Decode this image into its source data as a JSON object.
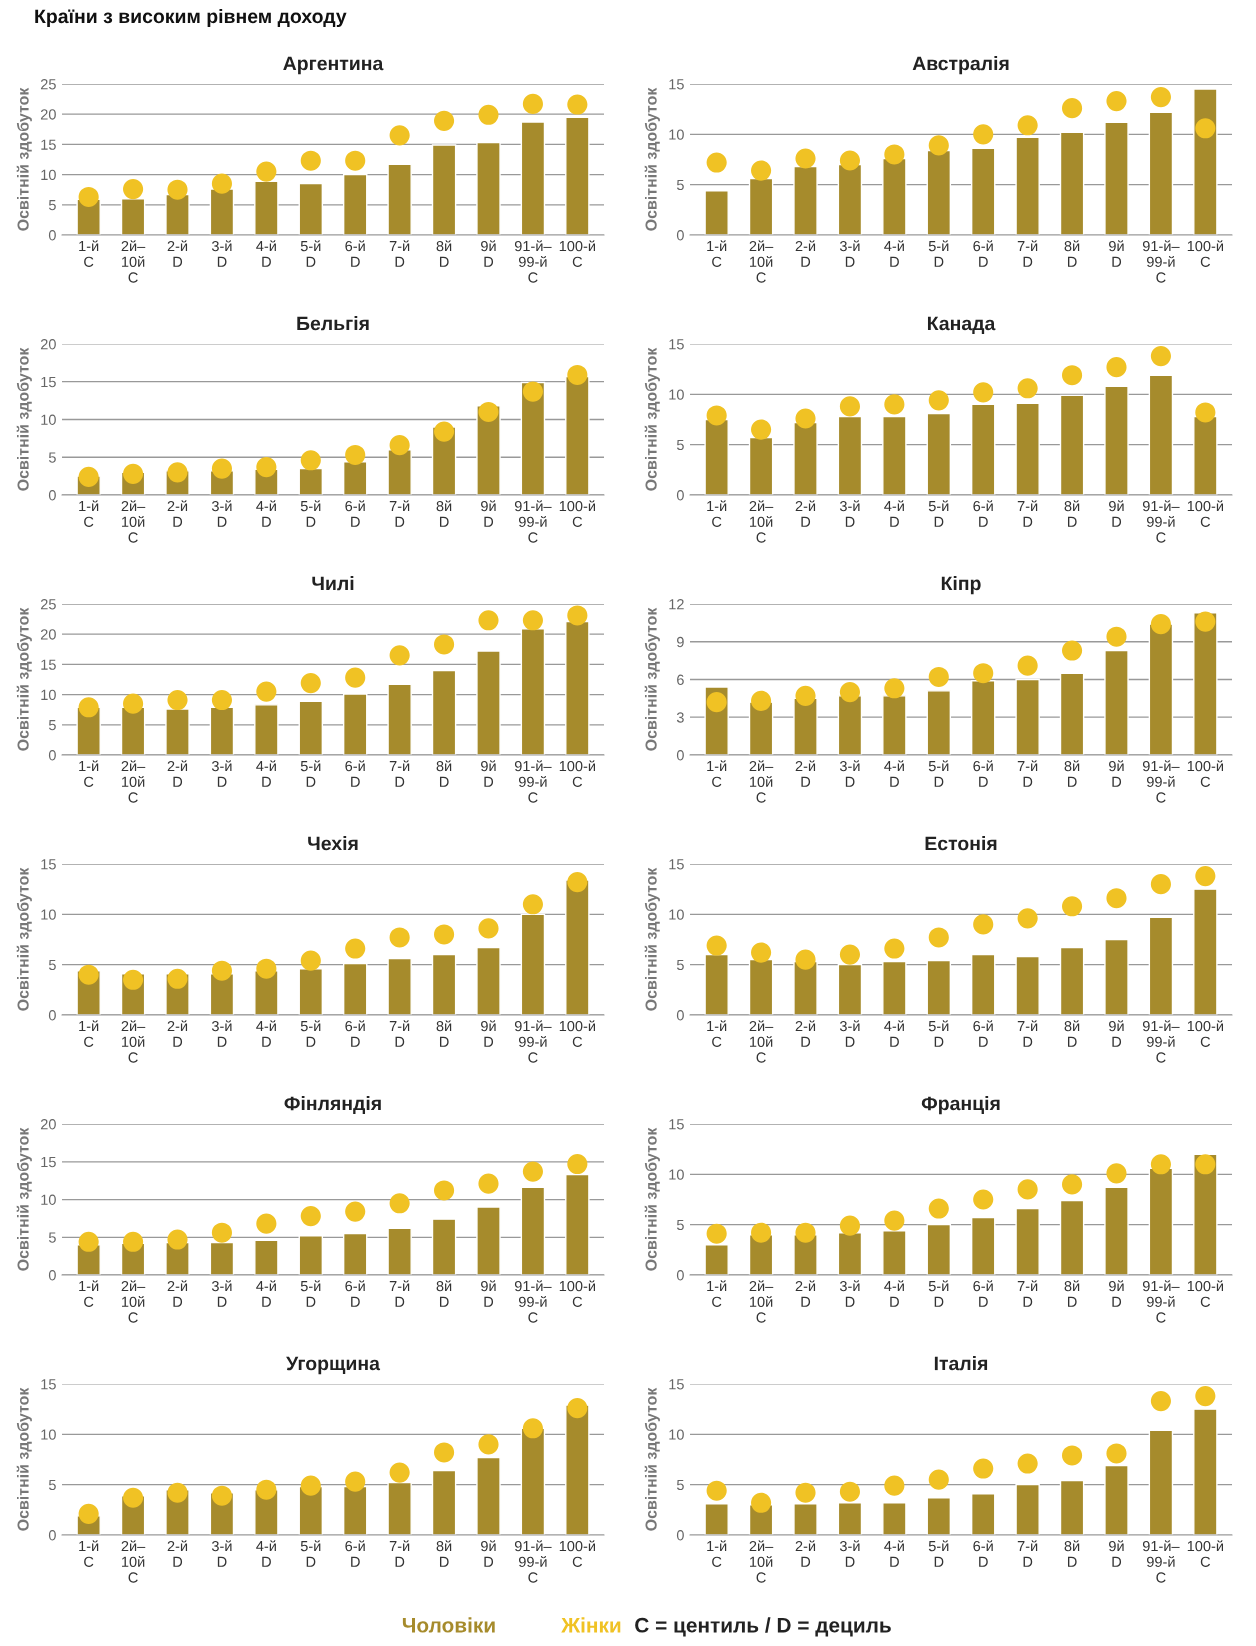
{
  "chart_data": [
    {
      "type": "bar",
      "title": "Аргентина",
      "ylabel": "Освітній здобуток",
      "annotations": [
        "Країни з високим рівнем доходу"
      ],
      "categories": [
        "1-й\nC",
        "2й–\n10й\nC",
        "2-й\nD",
        "3-й\nD",
        "4-й\nD",
        "5-й\nD",
        "6-й\nD",
        "7-й\nD",
        "8й\nD",
        "9й\nD",
        "91-й–\n99-й\nC",
        "100-й\nC"
      ],
      "ylim": [
        0,
        25
      ],
      "yticks": [
        0,
        5,
        10,
        15,
        20,
        25
      ],
      "grid": "y",
      "series": [
        {
          "color": "#a68b2c",
          "values": [
            5.9,
            6.0,
            6.7,
            7.6,
            8.9,
            8.5,
            10.0,
            11.7,
            14.9,
            15.3,
            18.7,
            19.5
          ]
        },
        {
          "type": "scatter",
          "color": "#f0c224",
          "marker": "circle",
          "values": [
            6.3,
            7.6,
            7.5,
            8.5,
            10.5,
            12.3,
            12.3,
            16.5,
            18.9,
            19.9,
            21.7,
            21.6
          ]
        }
      ]
    },
    {
      "type": "bar",
      "title": "Австралія",
      "ylabel": "Освітній здобуток",
      "categories": [
        "1-й\nC",
        "2й–\n10й\nC",
        "2-й\nD",
        "3-й\nD",
        "4-й\nD",
        "5-й\nD",
        "6-й\nD",
        "7-й\nD",
        "8й\nD",
        "9й\nD",
        "91-й–\n99-й\nC",
        "100-й\nC"
      ],
      "ylim": [
        0,
        15
      ],
      "yticks": [
        0,
        5,
        10,
        15
      ],
      "grid": "y",
      "series": [
        {
          "color": "#a68b2c",
          "values": [
            4.4,
            5.6,
            6.8,
            7.0,
            7.6,
            8.4,
            8.6,
            9.7,
            10.2,
            11.2,
            12.2,
            14.5
          ]
        },
        {
          "type": "scatter",
          "color": "#f0c224",
          "marker": "circle",
          "values": [
            7.2,
            6.4,
            7.6,
            7.4,
            8.0,
            8.9,
            10.0,
            10.9,
            12.6,
            13.3,
            13.7,
            10.6
          ]
        }
      ]
    },
    {
      "type": "bar",
      "title": "Бельгія",
      "ylabel": "Освітній здобуток",
      "categories": [
        "1-й\nC",
        "2й–\n10й\nC",
        "2-й\nD",
        "3-й\nD",
        "4-й\nD",
        "5-й\nD",
        "6-й\nD",
        "7-й\nD",
        "8й\nD",
        "9й\nD",
        "91-й–\n99-й\nC",
        "100-й\nC"
      ],
      "ylim": [
        0,
        20
      ],
      "yticks": [
        0,
        5,
        10,
        15,
        20
      ],
      "grid": "y",
      "series": [
        {
          "color": "#a68b2c",
          "values": [
            2.5,
            3.0,
            3.2,
            3.2,
            3.4,
            3.5,
            4.4,
            6.0,
            9.0,
            11.8,
            14.9,
            15.7
          ]
        },
        {
          "type": "scatter",
          "color": "#f0c224",
          "marker": "circle",
          "values": [
            2.4,
            2.8,
            3.0,
            3.5,
            3.7,
            4.6,
            5.3,
            6.6,
            8.4,
            11.0,
            13.7,
            15.9
          ]
        }
      ]
    },
    {
      "type": "bar",
      "title": "Канада",
      "ylabel": "Освітній здобуток",
      "categories": [
        "1-й\nC",
        "2й–\n10й\nC",
        "2-й\nD",
        "3-й\nD",
        "4-й\nD",
        "5-й\nD",
        "6-й\nD",
        "7-й\nD",
        "8й\nD",
        "9й\nD",
        "91-й–\n99-й\nC",
        "100-й\nC"
      ],
      "ylim": [
        0,
        15
      ],
      "yticks": [
        0,
        5,
        10,
        15
      ],
      "grid": "y",
      "series": [
        {
          "color": "#a68b2c",
          "values": [
            7.5,
            5.7,
            7.2,
            7.8,
            7.8,
            8.1,
            9.0,
            9.1,
            9.9,
            10.8,
            11.9,
            7.8
          ]
        },
        {
          "type": "scatter",
          "color": "#f0c224",
          "marker": "circle",
          "values": [
            7.9,
            6.5,
            7.6,
            8.8,
            9.0,
            9.4,
            10.2,
            10.6,
            11.9,
            12.7,
            13.8,
            8.2
          ]
        }
      ]
    },
    {
      "type": "bar",
      "title": "Чилі",
      "ylabel": "Освітній здобуток",
      "categories": [
        "1-й\nC",
        "2й–\n10й\nC",
        "2-й\nD",
        "3-й\nD",
        "4-й\nD",
        "5-й\nD",
        "6-й\nD",
        "7-й\nD",
        "8й\nD",
        "9й\nD",
        "91-й–\n99-й\nC",
        "100-й\nC"
      ],
      "ylim": [
        0,
        25
      ],
      "yticks": [
        0,
        5,
        10,
        15,
        20,
        25
      ],
      "grid": "y",
      "series": [
        {
          "color": "#a68b2c",
          "values": [
            7.9,
            7.9,
            7.6,
            7.9,
            8.3,
            8.9,
            10.1,
            11.7,
            14.0,
            17.2,
            20.9,
            22.1
          ]
        },
        {
          "type": "scatter",
          "color": "#f0c224",
          "marker": "circle",
          "values": [
            7.9,
            8.5,
            9.1,
            9.1,
            10.5,
            11.9,
            12.8,
            16.5,
            18.3,
            22.3,
            22.3,
            23.1
          ]
        }
      ]
    },
    {
      "type": "bar",
      "title": "Кіпр",
      "ylabel": "Освітній здобуток",
      "categories": [
        "1-й\nC",
        "2й–\n10й\nC",
        "2-й\nD",
        "3-й\nD",
        "4-й\nD",
        "5-й\nD",
        "6-й\nD",
        "7-й\nD",
        "8й\nD",
        "9й\nD",
        "91-й–\n99-й\nC",
        "100-й\nC"
      ],
      "ylim": [
        0,
        12
      ],
      "yticks": [
        0,
        3,
        6,
        9,
        12
      ],
      "grid": "y",
      "series": [
        {
          "color": "#a68b2c",
          "values": [
            5.4,
            4.2,
            4.5,
            4.7,
            4.7,
            5.1,
            5.9,
            6.0,
            6.5,
            8.3,
            10.4,
            11.3
          ]
        },
        {
          "type": "scatter",
          "color": "#f0c224",
          "marker": "circle",
          "values": [
            4.2,
            4.3,
            4.7,
            5.0,
            5.3,
            6.2,
            6.5,
            7.1,
            8.3,
            9.4,
            10.4,
            10.6
          ]
        }
      ]
    },
    {
      "type": "bar",
      "title": "Чехія",
      "ylabel": "Освітній здобуток",
      "categories": [
        "1-й\nC",
        "2й–\n10й\nC",
        "2-й\nD",
        "3-й\nD",
        "4-й\nD",
        "5-й\nD",
        "6-й\nD",
        "7-й\nD",
        "8й\nD",
        "9й\nD",
        "91-й–\n99-й\nC",
        "100-й\nC"
      ],
      "ylim": [
        0,
        15
      ],
      "yticks": [
        0,
        5,
        10,
        15
      ],
      "grid": "y",
      "series": [
        {
          "color": "#a68b2c",
          "values": [
            4.4,
            4.1,
            4.1,
            4.1,
            4.4,
            4.6,
            5.1,
            5.6,
            6.0,
            6.7,
            10.0,
            13.4
          ]
        },
        {
          "type": "scatter",
          "color": "#f0c224",
          "marker": "circle",
          "values": [
            4.0,
            3.5,
            3.6,
            4.4,
            4.6,
            5.4,
            6.6,
            7.7,
            8.0,
            8.6,
            11.0,
            13.2
          ]
        }
      ]
    },
    {
      "type": "bar",
      "title": "Естонія",
      "ylabel": "Освітній здобуток",
      "categories": [
        "1-й\nC",
        "2й–\n10й\nC",
        "2-й\nD",
        "3-й\nD",
        "4-й\nD",
        "5-й\nD",
        "6-й\nD",
        "7-й\nD",
        "8й\nD",
        "9й\nD",
        "91-й–\n99-й\nC",
        "100-й\nC"
      ],
      "ylim": [
        0,
        15
      ],
      "yticks": [
        0,
        5,
        10,
        15
      ],
      "grid": "y",
      "series": [
        {
          "color": "#a68b2c",
          "values": [
            6.0,
            5.5,
            5.3,
            5.0,
            5.3,
            5.4,
            6.0,
            5.8,
            6.7,
            7.5,
            9.7,
            12.5
          ]
        },
        {
          "type": "scatter",
          "color": "#f0c224",
          "marker": "circle",
          "values": [
            6.9,
            6.2,
            5.5,
            6.0,
            6.6,
            7.7,
            9.0,
            9.6,
            10.8,
            11.6,
            13.0,
            13.8
          ]
        }
      ]
    },
    {
      "type": "bar",
      "title": "Фінляндія",
      "ylabel": "Освітній здобуток",
      "categories": [
        "1-й\nC",
        "2й–\n10й\nC",
        "2-й\nD",
        "3-й\nD",
        "4-й\nD",
        "5-й\nD",
        "6-й\nD",
        "7-й\nD",
        "8й\nD",
        "9й\nD",
        "91-й–\n99-й\nC",
        "100-й\nC"
      ],
      "ylim": [
        0,
        20
      ],
      "yticks": [
        0,
        5,
        10,
        15,
        20
      ],
      "grid": "y",
      "series": [
        {
          "color": "#a68b2c",
          "values": [
            4.0,
            4.2,
            4.3,
            4.3,
            4.6,
            5.2,
            5.5,
            6.2,
            7.4,
            9.0,
            11.6,
            13.3
          ]
        },
        {
          "type": "scatter",
          "color": "#f0c224",
          "marker": "circle",
          "values": [
            4.4,
            4.4,
            4.7,
            5.6,
            6.8,
            7.8,
            8.4,
            9.5,
            11.2,
            12.1,
            13.7,
            14.7
          ]
        }
      ]
    },
    {
      "type": "bar",
      "title": "Франція",
      "ylabel": "Освітній здобуток",
      "categories": [
        "1-й\nC",
        "2й–\n10й\nC",
        "2-й\nD",
        "3-й\nD",
        "4-й\nD",
        "5-й\nD",
        "6-й\nD",
        "7-й\nD",
        "8й\nD",
        "9й\nD",
        "91-й–\n99-й\nC",
        "100-й\nC"
      ],
      "ylim": [
        0,
        15
      ],
      "yticks": [
        0,
        5,
        10,
        15
      ],
      "grid": "y",
      "series": [
        {
          "color": "#a68b2c",
          "values": [
            3.0,
            4.0,
            4.0,
            4.2,
            4.4,
            5.0,
            5.7,
            6.6,
            7.4,
            8.7,
            10.6,
            12.0
          ]
        },
        {
          "type": "scatter",
          "color": "#f0c224",
          "marker": "circle",
          "values": [
            4.1,
            4.2,
            4.2,
            4.9,
            5.4,
            6.6,
            7.5,
            8.5,
            9.0,
            10.1,
            11.0,
            11.0
          ]
        }
      ]
    },
    {
      "type": "bar",
      "title": "Угорщина",
      "ylabel": "Освітній здобуток",
      "categories": [
        "1-й\nC",
        "2й–\n10й\nC",
        "2-й\nD",
        "3-й\nD",
        "4-й\nD",
        "5-й\nD",
        "6-й\nD",
        "7-й\nD",
        "8й\nD",
        "9й\nD",
        "91-й–\n99-й\nC",
        "100-й\nC"
      ],
      "ylim": [
        0,
        15
      ],
      "yticks": [
        0,
        5,
        10,
        15
      ],
      "grid": "y",
      "series": [
        {
          "color": "#a68b2c",
          "values": [
            1.9,
            3.9,
            4.5,
            4.2,
            4.5,
            4.8,
            4.8,
            5.2,
            6.4,
            7.7,
            10.6,
            12.9
          ]
        },
        {
          "type": "scatter",
          "color": "#f0c224",
          "marker": "circle",
          "values": [
            2.1,
            3.7,
            4.2,
            3.9,
            4.5,
            4.9,
            5.3,
            6.2,
            8.2,
            9.0,
            10.6,
            12.6
          ]
        }
      ]
    },
    {
      "type": "bar",
      "title": "Італія",
      "ylabel": "Освітній здобуток",
      "annotations": [
        "C = центиль / D = дециль"
      ],
      "legend": "bottom",
      "categories": [
        "1-й\nC",
        "2й–\n10й\nC",
        "2-й\nD",
        "3-й\nD",
        "4-й\nD",
        "5-й\nD",
        "6-й\nD",
        "7-й\nD",
        "8й\nD",
        "9й\nD",
        "91-й–\n99-й\nC",
        "100-й\nC"
      ],
      "ylim": [
        0,
        15
      ],
      "yticks": [
        0,
        5,
        10,
        15
      ],
      "grid": "y",
      "series": [
        {
          "name": "Чоловіки",
          "color": "#a68b2c",
          "values": [
            3.1,
            3.0,
            3.1,
            3.2,
            3.2,
            3.7,
            4.1,
            5.0,
            5.4,
            6.9,
            10.4,
            12.5
          ]
        },
        {
          "type": "scatter",
          "name": "Жінки",
          "color": "#f0c224",
          "marker": "circle",
          "values": [
            4.4,
            3.2,
            4.2,
            4.3,
            4.9,
            5.5,
            6.6,
            7.1,
            7.9,
            8.1,
            13.3,
            13.8
          ]
        }
      ]
    }
  ]
}
